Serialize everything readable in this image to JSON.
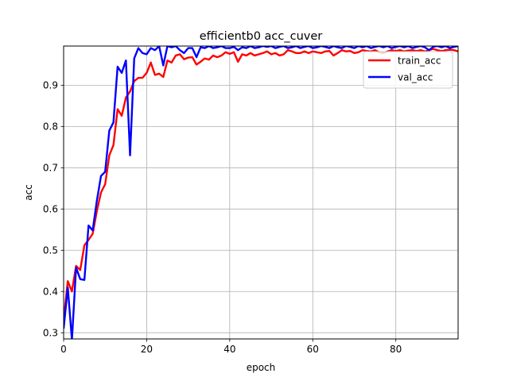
{
  "chart_data": {
    "type": "line",
    "title": "efficientb0 acc_cuver",
    "xlabel": "epoch",
    "ylabel": "acc",
    "xlim": [
      0,
      95
    ],
    "ylim": [
      0.285,
      0.995
    ],
    "xticks": [
      0,
      20,
      40,
      60,
      80
    ],
    "yticks": [
      0.3,
      0.4,
      0.5,
      0.6,
      0.7,
      0.8,
      0.9
    ],
    "grid": true,
    "legend_position": "top-right",
    "series": [
      {
        "name": "train_acc",
        "color": "#ff0000",
        "values": [
          0.33,
          0.425,
          0.4,
          0.462,
          0.452,
          0.512,
          0.525,
          0.54,
          0.595,
          0.64,
          0.66,
          0.73,
          0.755,
          0.842,
          0.826,
          0.87,
          0.885,
          0.91,
          0.918,
          0.918,
          0.93,
          0.955,
          0.925,
          0.928,
          0.92,
          0.96,
          0.955,
          0.972,
          0.975,
          0.963,
          0.967,
          0.968,
          0.95,
          0.957,
          0.965,
          0.962,
          0.972,
          0.968,
          0.972,
          0.98,
          0.976,
          0.98,
          0.957,
          0.975,
          0.972,
          0.978,
          0.972,
          0.975,
          0.978,
          0.982,
          0.975,
          0.978,
          0.972,
          0.975,
          0.985,
          0.982,
          0.978,
          0.978,
          0.982,
          0.978,
          0.982,
          0.98,
          0.978,
          0.982,
          0.983,
          0.972,
          0.978,
          0.985,
          0.982,
          0.983,
          0.978,
          0.98,
          0.985,
          0.983,
          0.982,
          0.985,
          0.98,
          0.978,
          0.982,
          0.985,
          0.983,
          0.985,
          0.982,
          0.984,
          0.985,
          0.983,
          0.985,
          0.982,
          0.985,
          0.988,
          0.985,
          0.983,
          0.985,
          0.986,
          0.985,
          0.982
        ]
      },
      {
        "name": "val_acc",
        "color": "#0000ff",
        "values": [
          0.31,
          0.41,
          0.283,
          0.458,
          0.43,
          0.428,
          0.56,
          0.548,
          0.62,
          0.68,
          0.69,
          0.79,
          0.81,
          0.945,
          0.93,
          0.96,
          0.73,
          0.965,
          0.99,
          0.978,
          0.975,
          0.99,
          0.985,
          0.995,
          0.948,
          0.995,
          0.992,
          0.995,
          0.985,
          0.978,
          0.99,
          0.99,
          0.968,
          0.992,
          0.99,
          0.995,
          0.99,
          0.992,
          0.995,
          0.99,
          0.99,
          0.993,
          0.985,
          0.992,
          0.99,
          0.995,
          0.99,
          0.992,
          0.995,
          0.993,
          0.995,
          0.99,
          0.993,
          0.995,
          0.99,
          0.992,
          0.995,
          0.99,
          0.993,
          0.995,
          0.99,
          0.992,
          0.995,
          0.993,
          0.99,
          0.995,
          0.992,
          0.99,
          0.995,
          0.993,
          0.99,
          0.995,
          0.992,
          0.995,
          0.99,
          0.993,
          0.995,
          0.992,
          0.995,
          0.99,
          0.993,
          0.995,
          0.992,
          0.995,
          0.99,
          0.993,
          0.995,
          0.992,
          0.985,
          0.993,
          0.995,
          0.992,
          0.995,
          0.99,
          0.993,
          0.995
        ]
      }
    ]
  }
}
